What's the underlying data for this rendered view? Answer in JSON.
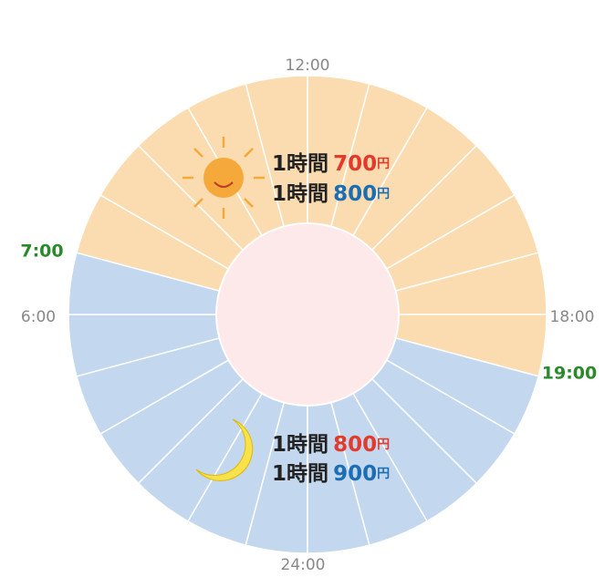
{
  "clock": {
    "hours": {
      "noon": "12:00",
      "evening": "18:00",
      "midnight": "24:00",
      "morning": "6:00"
    },
    "day_start": "7:00",
    "day_end": "19:00"
  },
  "day": {
    "rows": [
      {
        "label": "1時間",
        "price": "700",
        "unit": "円"
      },
      {
        "label": "1時間",
        "price": "800",
        "unit": "円"
      }
    ]
  },
  "night": {
    "rows": [
      {
        "label": "1時間",
        "price": "800",
        "unit": "円"
      },
      {
        "label": "1時間",
        "price": "900",
        "unit": "円"
      }
    ]
  }
}
